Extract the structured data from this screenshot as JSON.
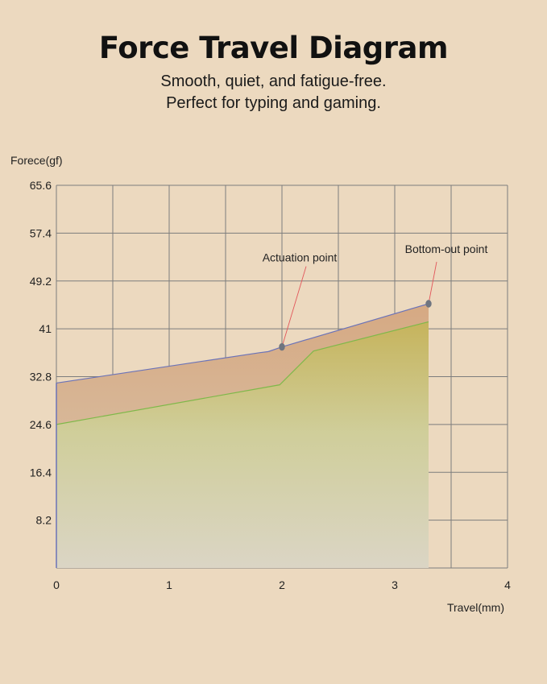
{
  "header": {
    "title": "Force Travel Diagram",
    "subtitle_line1": "Smooth, quiet, and fatigue-free.",
    "subtitle_line2": "Perfect for typing and gaming."
  },
  "chart_data": {
    "type": "area",
    "ylabel": "Forece(gf)",
    "xlabel": "Travel(mm)",
    "xlim": [
      0,
      4
    ],
    "ylim": [
      0,
      65.6
    ],
    "x_ticks": [
      "0",
      "1",
      "2",
      "3",
      "4"
    ],
    "y_ticks": [
      "8.2",
      "16.4",
      "24.6",
      "32.8",
      "41",
      "49.2",
      "57.4",
      "65.6"
    ],
    "grid": true,
    "series": [
      {
        "color": "#6b73b8",
        "fill_top": "#d6ad86",
        "x": [
          0,
          1.8,
          1.88,
          2.0,
          3.3
        ],
        "y": [
          31.7,
          36.9,
          37.1,
          37.9,
          45.3
        ]
      },
      {
        "color": "#7fb84a",
        "fill_top": "#c2b45e",
        "x": [
          0,
          1.98,
          2.28,
          3.3
        ],
        "y": [
          24.6,
          31.4,
          37.2,
          42.2
        ]
      }
    ],
    "annotations": [
      {
        "label": "Actuation point",
        "x": 2.0,
        "y": 37.9
      },
      {
        "label": "Bottom-out point",
        "x": 3.3,
        "y": 45.3
      }
    ]
  }
}
